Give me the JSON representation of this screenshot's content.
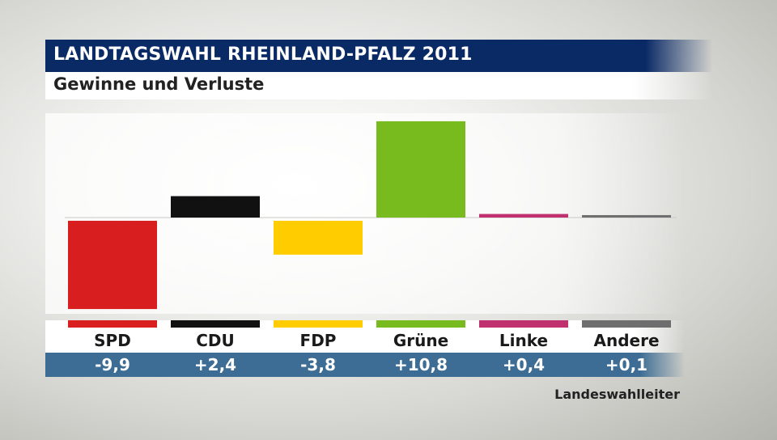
{
  "header": {
    "title": "LANDTAGSWAHL RHEINLAND-PFALZ 2011",
    "subtitle": "Gewinne und Verluste"
  },
  "source": "Landeswahlleiter",
  "chart_data": {
    "type": "bar",
    "title": "LANDTAGSWAHL RHEINLAND-PFALZ 2011",
    "subtitle": "Gewinne und Verluste",
    "categories": [
      "SPD",
      "CDU",
      "FDP",
      "Grüne",
      "Linke",
      "Andere"
    ],
    "values": [
      -9.9,
      2.4,
      -3.8,
      10.8,
      0.4,
      0.1
    ],
    "value_labels": [
      "-9,9",
      "+2,4",
      "-3,8",
      "+10,8",
      "+0,4",
      "+0,1"
    ],
    "colors": [
      "#d81e1e",
      "#111111",
      "#ffcc00",
      "#78bb1e",
      "#c0306e",
      "#6e6e6e"
    ],
    "xlabel": "",
    "ylabel": "",
    "ylim": [
      -10.8,
      11.7
    ],
    "grid": false,
    "legend": "none"
  }
}
